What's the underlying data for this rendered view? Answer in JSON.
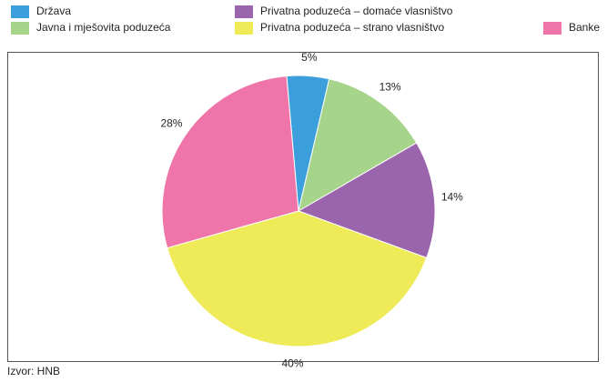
{
  "chart_data": {
    "type": "pie",
    "categories": [
      "Država",
      "Javna i mješovita poduzeća",
      "Privatna poduzeća – domaće vlasništvo",
      "Privatna poduzeća – strano vlasništvo",
      "Banke"
    ],
    "values": [
      5,
      13,
      14,
      40,
      28
    ],
    "value_labels": [
      "5%",
      "13%",
      "14%",
      "40%",
      "28%"
    ],
    "colors": [
      "#3a9fdb",
      "#a5d48a",
      "#9b65ad",
      "#eeea58",
      "#ef74a9"
    ],
    "source": "Izvor: HNB"
  }
}
